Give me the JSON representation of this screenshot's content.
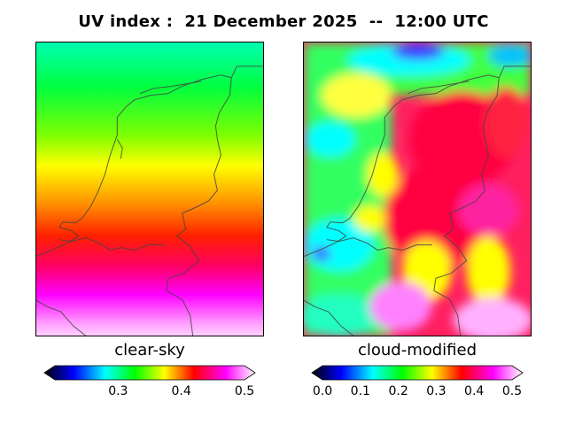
{
  "title": "UV index :  21 December 2025  --  12:00 UTC",
  "panels": [
    {
      "label": "clear-sky",
      "colorbar": {
        "range": [
          0.2,
          0.5
        ],
        "ticks": [
          "0.3",
          "0.4",
          "0.5"
        ]
      }
    },
    {
      "label": "cloud-modified",
      "colorbar": {
        "range": [
          0.0,
          0.5
        ],
        "ticks": [
          "0.0",
          "0.1",
          "0.2",
          "0.3",
          "0.4",
          "0.5"
        ]
      }
    }
  ],
  "colormap": [
    "#000000",
    "#0000ff",
    "#00ffff",
    "#00ff00",
    "#ffff00",
    "#ff0000",
    "#ff00ff",
    "#ffffff"
  ]
}
